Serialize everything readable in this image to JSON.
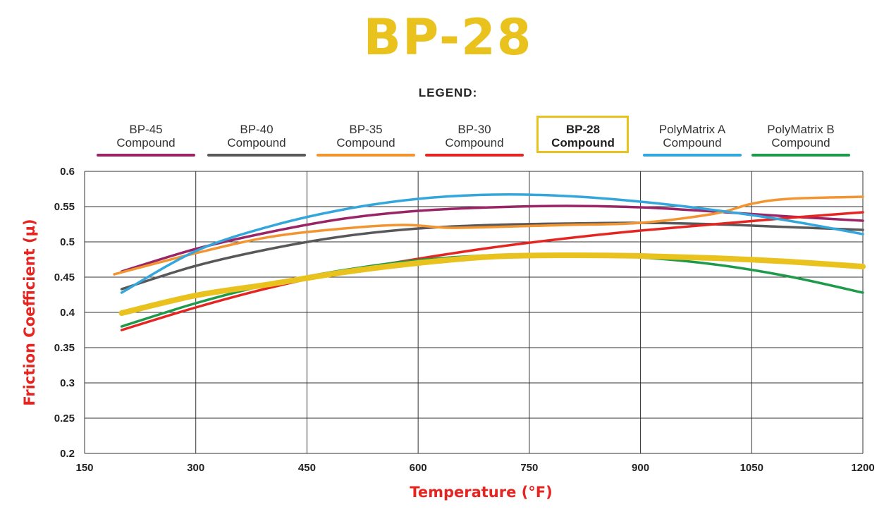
{
  "title": "BP-28",
  "legend_heading": "LEGEND:",
  "colors": {
    "title": "#e9c21d",
    "axis_labels": "#e52521",
    "grid": "#333333"
  },
  "chart_data": {
    "type": "line",
    "title": "BP-28",
    "xlabel": "Temperature (°F)",
    "ylabel": "Friction Coefficient (µ)",
    "xlim": [
      150,
      1200
    ],
    "ylim": [
      0.2,
      0.6
    ],
    "x_ticks": [
      "150",
      "300",
      "450",
      "600",
      "750",
      "900",
      "1050",
      "1200"
    ],
    "y_ticks": [
      "0.6",
      "0.55",
      "0.5",
      "0.45",
      "0.4",
      "0.35",
      "0.3",
      "0.25",
      "0.2"
    ],
    "grid": true,
    "legend_position": "top",
    "series": [
      {
        "name": "BP-45 Compound",
        "label_line1": "BP-45",
        "label_line2": "Compound",
        "color": "#9b2466",
        "width": 3.5,
        "x": [
          200,
          300,
          400,
          500,
          600,
          700,
          800,
          900,
          1000,
          1100,
          1200
        ],
        "y": [
          0.458,
          0.49,
          0.514,
          0.533,
          0.544,
          0.549,
          0.551,
          0.549,
          0.543,
          0.536,
          0.53
        ]
      },
      {
        "name": "BP-40 Compound",
        "label_line1": "BP-40",
        "label_line2": "Compound",
        "color": "#58585a",
        "width": 3.5,
        "x": [
          200,
          300,
          400,
          500,
          600,
          700,
          800,
          900,
          1000,
          1100,
          1200
        ],
        "y": [
          0.433,
          0.466,
          0.49,
          0.508,
          0.519,
          0.524,
          0.526,
          0.527,
          0.525,
          0.521,
          0.517
        ]
      },
      {
        "name": "BP-35 Compound",
        "label_line1": "BP-35",
        "label_line2": "Compound",
        "color": "#f29531",
        "width": 3.5,
        "x": [
          190,
          300,
          400,
          500,
          580,
          640,
          700,
          800,
          900,
          1000,
          1050,
          1100,
          1200
        ],
        "y": [
          0.454,
          0.484,
          0.507,
          0.519,
          0.524,
          0.52,
          0.521,
          0.524,
          0.527,
          0.54,
          0.554,
          0.561,
          0.564
        ]
      },
      {
        "name": "BP-30 Compound",
        "label_line1": "BP-30",
        "label_line2": "Compound",
        "color": "#e52521",
        "width": 3.5,
        "x": [
          200,
          300,
          400,
          500,
          600,
          700,
          800,
          900,
          1000,
          1100,
          1200
        ],
        "y": [
          0.375,
          0.407,
          0.435,
          0.458,
          0.476,
          0.492,
          0.505,
          0.516,
          0.525,
          0.534,
          0.542
        ]
      },
      {
        "name": "PolyMatrix A Compound",
        "label_line1": "PolyMatrix A",
        "label_line2": "Compound",
        "color": "#33a6dc",
        "width": 3.5,
        "x": [
          200,
          300,
          400,
          500,
          600,
          700,
          800,
          900,
          1000,
          1100,
          1200
        ],
        "y": [
          0.428,
          0.487,
          0.522,
          0.546,
          0.561,
          0.567,
          0.565,
          0.557,
          0.545,
          0.53,
          0.511
        ]
      },
      {
        "name": "PolyMatrix B Compound",
        "label_line1": "PolyMatrix B",
        "label_line2": "Compound",
        "color": "#1e9a4b",
        "width": 3.5,
        "x": [
          200,
          300,
          400,
          500,
          600,
          700,
          800,
          900,
          1000,
          1100,
          1200
        ],
        "y": [
          0.38,
          0.413,
          0.44,
          0.46,
          0.474,
          0.481,
          0.482,
          0.478,
          0.468,
          0.451,
          0.428
        ]
      },
      {
        "name": "BP-28 Compound",
        "label_line1": "BP-28",
        "label_line2": "Compound",
        "color": "#e9c21d",
        "width": 8,
        "highlight": true,
        "x": [
          200,
          300,
          400,
          500,
          600,
          700,
          800,
          900,
          1000,
          1100,
          1200
        ],
        "y": [
          0.399,
          0.424,
          0.44,
          0.457,
          0.47,
          0.479,
          0.481,
          0.48,
          0.477,
          0.472,
          0.465
        ]
      }
    ]
  }
}
